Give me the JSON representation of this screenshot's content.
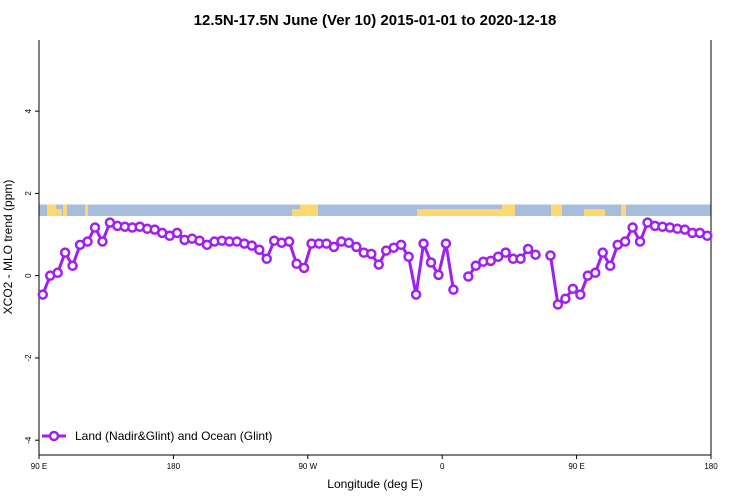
{
  "chart_data": {
    "type": "line",
    "title": "12.5N-17.5N June (Ver 10)   2015-01-01 to 2020-12-18",
    "xlabel": "Longitude (deg E)",
    "ylabel": "XCO2 - MLO trend (ppm)",
    "xlim": [
      90,
      540
    ],
    "ylim": [
      -4.36,
      5.73
    ],
    "grid": false,
    "x_ticks": [
      {
        "value": 90,
        "label": "90 E"
      },
      {
        "value": 180,
        "label": "180"
      },
      {
        "value": 270,
        "label": "90 W"
      },
      {
        "value": 360,
        "label": "0"
      },
      {
        "value": 450,
        "label": "90 E"
      },
      {
        "value": 540,
        "label": "180"
      }
    ],
    "y_ticks": [
      {
        "value": -4,
        "label": "-4"
      },
      {
        "value": -2,
        "label": "-2"
      },
      {
        "value": 0,
        "label": "0"
      },
      {
        "value": 2,
        "label": "2"
      },
      {
        "value": 4,
        "label": "4"
      }
    ],
    "legend_position": "bottom-left",
    "land_ocean_strip": {
      "y_range": [
        1.45,
        1.73
      ],
      "ocean_color": "#a6bddb",
      "land_color": "#fdd870"
    },
    "series": [
      {
        "name": "Land (Nadir&Glint) and Ocean (Glint)",
        "color": "#a020f0",
        "x_start": 92.5,
        "x_step": 5,
        "values": [
          -0.46,
          0,
          0.07,
          0.56,
          0.24,
          0.75,
          0.83,
          1.17,
          0.83,
          1.29,
          1.21,
          1.19,
          1.17,
          1.19,
          1.14,
          1.12,
          1.04,
          0.97,
          1.04,
          0.87,
          0.9,
          0.85,
          0.75,
          0.83,
          0.85,
          0.83,
          0.83,
          0.78,
          0.73,
          0.63,
          0.41,
          0.85,
          0.8,
          0.83,
          0.29,
          0.19,
          0.78,
          0.78,
          0.78,
          0.7,
          0.83,
          0.8,
          0.7,
          0.56,
          0.53,
          0.27,
          0.61,
          0.68,
          0.75,
          0.46,
          -0.46,
          0.78,
          0.32,
          0.02,
          0.78,
          -0.34,
          null,
          -0.02,
          0.24,
          0.34,
          0.36,
          0.46,
          0.56,
          0.41,
          0.41,
          0.65,
          0.51,
          null,
          0.49,
          -0.7,
          -0.56,
          -0.32,
          -0.46,
          0,
          0.07,
          0.56,
          0.24,
          0.75,
          0.83,
          1.17,
          0.83,
          1.29,
          1.21,
          1.19,
          1.17,
          1.14,
          1.12,
          1.04,
          1.04,
          0.97
        ]
      }
    ]
  }
}
